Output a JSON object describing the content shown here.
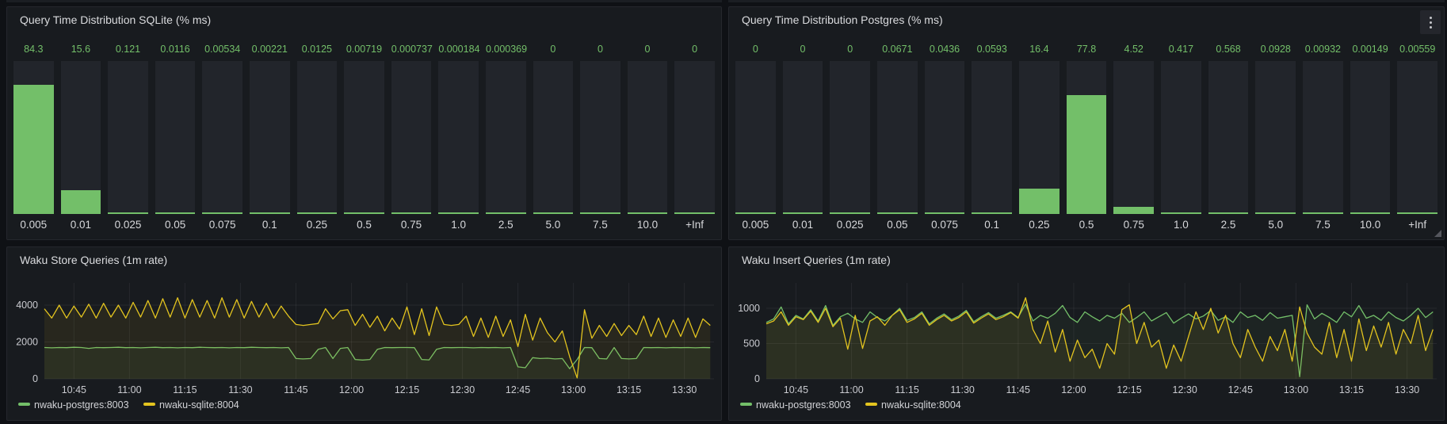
{
  "colors": {
    "green": "#73bf69",
    "yellow": "#e3c41f",
    "green_fill": "rgba(115,191,105,0.06)",
    "yellow_fill": "rgba(227,196,31,0.08)",
    "value_text": "#73bf69",
    "axis_text": "#cacbd0",
    "grid": "rgba(204,204,220,0.08)",
    "bar_track": "#22252b",
    "panel_bg": "#181b1f"
  },
  "chart_data": [
    {
      "id": "hist-sqlite",
      "type": "bar",
      "title": "Query Time Distribution SQLite (% ms)",
      "categories": [
        "0.005",
        "0.01",
        "0.025",
        "0.05",
        "0.075",
        "0.1",
        "0.25",
        "0.5",
        "0.75",
        "1.0",
        "2.5",
        "5.0",
        "7.5",
        "10.0",
        "+Inf"
      ],
      "values": [
        84.3,
        15.6,
        0.121,
        0.0116,
        0.00534,
        0.00221,
        0.0125,
        0.00719,
        0.000737,
        0.000184,
        0.000369,
        0,
        0,
        0,
        0
      ],
      "value_labels": [
        "84.3",
        "15.6",
        "0.121",
        "0.0116",
        "0.00534",
        "0.00221",
        "0.0125",
        "0.00719",
        "0.000737",
        "0.000184",
        "0.000369",
        "0",
        "0",
        "0",
        "0"
      ],
      "ylim": [
        0,
        100
      ],
      "unit": "%"
    },
    {
      "id": "hist-postgres",
      "type": "bar",
      "title": "Query Time Distribution Postgres (% ms)",
      "categories": [
        "0.005",
        "0.01",
        "0.025",
        "0.05",
        "0.075",
        "0.1",
        "0.25",
        "0.5",
        "0.75",
        "1.0",
        "2.5",
        "5.0",
        "7.5",
        "10.0",
        "+Inf"
      ],
      "values": [
        0,
        0,
        0,
        0.0671,
        0.0436,
        0.0593,
        16.4,
        77.8,
        4.52,
        0.417,
        0.568,
        0.0928,
        0.00932,
        0.00149,
        0.00559
      ],
      "value_labels": [
        "0",
        "0",
        "0",
        "0.0671",
        "0.0436",
        "0.0593",
        "16.4",
        "77.8",
        "4.52",
        "0.417",
        "0.568",
        "0.0928",
        "0.00932",
        "0.00149",
        "0.00559"
      ],
      "ylim": [
        0,
        100
      ],
      "unit": "%"
    },
    {
      "id": "ts-store",
      "type": "line",
      "title": "Waku Store Queries (1m rate)",
      "x_start": "10:37",
      "duration_min": 181,
      "x_ticks": [
        {
          "label": "10:45",
          "min": 8
        },
        {
          "label": "11:00",
          "min": 23
        },
        {
          "label": "11:15",
          "min": 38
        },
        {
          "label": "11:30",
          "min": 53
        },
        {
          "label": "11:45",
          "min": 68
        },
        {
          "label": "12:00",
          "min": 83
        },
        {
          "label": "12:15",
          "min": 98
        },
        {
          "label": "12:30",
          "min": 113
        },
        {
          "label": "12:45",
          "min": 128
        },
        {
          "label": "13:00",
          "min": 143
        },
        {
          "label": "13:15",
          "min": 158
        },
        {
          "label": "13:30",
          "min": 173
        }
      ],
      "y_ticks": [
        0,
        2000,
        4000
      ],
      "y_max": 5204,
      "legend_position": "bottom-left",
      "grid": true,
      "series": [
        {
          "name": "nwaku-postgres:8003",
          "color": "#73bf69",
          "fill": "rgba(115,191,105,0.06)",
          "step_min": 2,
          "values": [
            1700,
            1680,
            1700,
            1690,
            1710,
            1700,
            1650,
            1700,
            1690,
            1700,
            1710,
            1690,
            1700,
            1680,
            1700,
            1710,
            1690,
            1700,
            1680,
            1700,
            1690,
            1710,
            1700,
            1690,
            1700,
            1680,
            1700,
            1690,
            1710,
            1700,
            1690,
            1700,
            1680,
            1700,
            1100,
            1080,
            1100,
            1600,
            1700,
            1100,
            1650,
            1700,
            1050,
            1020,
            1050,
            1600,
            1700,
            1690,
            1700,
            1700,
            1690,
            1050,
            1030,
            1600,
            1700,
            1690,
            1700,
            1700,
            1680,
            1700,
            1690,
            1700,
            1680,
            1700,
            650,
            600,
            1150,
            1100,
            1120,
            1080,
            1100,
            550,
            1050,
            1700,
            1690,
            1100,
            1080,
            1700,
            1100,
            1080,
            1100,
            1700,
            1690,
            1700,
            1680,
            1700,
            1690,
            1700,
            1680,
            1700,
            1690
          ]
        },
        {
          "name": "nwaku-sqlite:8004",
          "color": "#e3c41f",
          "fill": "rgba(227,196,31,0.08)",
          "step_min": 2,
          "values": [
            3800,
            3300,
            4000,
            3300,
            3950,
            3350,
            4050,
            3300,
            4100,
            3350,
            4000,
            3300,
            4150,
            3350,
            4250,
            3300,
            4350,
            3350,
            4400,
            3300,
            4300,
            3350,
            4250,
            3300,
            4400,
            3350,
            4300,
            3300,
            4200,
            3350,
            4100,
            3300,
            3950,
            3400,
            2950,
            2900,
            2950,
            3000,
            3800,
            3250,
            3700,
            3750,
            2900,
            3500,
            2800,
            3400,
            2600,
            3300,
            2700,
            3900,
            2400,
            3800,
            2350,
            3900,
            2950,
            2900,
            2950,
            3400,
            2300,
            3300,
            2250,
            3400,
            2300,
            3200,
            1750,
            3500,
            2100,
            3300,
            2500,
            2000,
            2600,
            1200,
            50,
            3750,
            2200,
            2900,
            2300,
            3000,
            2350,
            2900,
            2400,
            3400,
            2300,
            3300,
            2250,
            3200,
            2300,
            3300,
            2250,
            3250,
            2900
          ]
        }
      ]
    },
    {
      "id": "ts-insert",
      "type": "line",
      "title": "Waku Insert Queries (1m rate)",
      "x_start": "10:37",
      "duration_min": 181,
      "x_ticks": [
        {
          "label": "10:45",
          "min": 8
        },
        {
          "label": "11:00",
          "min": 23
        },
        {
          "label": "11:15",
          "min": 38
        },
        {
          "label": "11:30",
          "min": 53
        },
        {
          "label": "11:45",
          "min": 68
        },
        {
          "label": "12:00",
          "min": 83
        },
        {
          "label": "12:15",
          "min": 98
        },
        {
          "label": "12:30",
          "min": 113
        },
        {
          "label": "12:45",
          "min": 128
        },
        {
          "label": "13:00",
          "min": 143
        },
        {
          "label": "13:15",
          "min": 158
        },
        {
          "label": "13:30",
          "min": 173
        }
      ],
      "y_ticks": [
        0,
        500,
        1000
      ],
      "y_max": 1360,
      "legend_position": "bottom-left",
      "grid": true,
      "series": [
        {
          "name": "nwaku-postgres:8003",
          "color": "#73bf69",
          "fill": "rgba(115,191,105,0.06)",
          "step_min": 2,
          "values": [
            800,
            850,
            1020,
            780,
            900,
            850,
            980,
            820,
            1040,
            760,
            880,
            930,
            850,
            800,
            950,
            870,
            820,
            900,
            1000,
            830,
            870,
            950,
            780,
            860,
            920,
            840,
            890,
            970,
            810,
            880,
            940,
            860,
            900,
            950,
            870,
            1060,
            820,
            900,
            860,
            930,
            1040,
            870,
            800,
            950,
            880,
            820,
            900,
            860,
            930,
            800,
            870,
            950,
            820,
            880,
            940,
            790,
            860,
            920,
            850,
            890,
            970,
            830,
            880,
            800,
            950,
            870,
            900,
            830,
            940,
            860,
            880,
            900,
            30,
            1050,
            850,
            930,
            870,
            800,
            950,
            880,
            1040,
            860,
            900,
            830,
            950,
            870,
            820,
            900,
            1000,
            870,
            950
          ]
        },
        {
          "name": "nwaku-sqlite:8004",
          "color": "#e3c41f",
          "fill": "rgba(227,196,31,0.08)",
          "step_min": 2,
          "values": [
            780,
            820,
            950,
            760,
            880,
            840,
            960,
            800,
            1000,
            740,
            860,
            420,
            900,
            430,
            820,
            880,
            760,
            900,
            980,
            800,
            850,
            930,
            760,
            840,
            900,
            820,
            870,
            950,
            790,
            860,
            920,
            840,
            880,
            940,
            860,
            1150,
            700,
            500,
            820,
            380,
            700,
            250,
            550,
            300,
            420,
            150,
            500,
            350,
            980,
            1050,
            500,
            800,
            450,
            550,
            150,
            480,
            250,
            600,
            950,
            700,
            1000,
            650,
            900,
            500,
            300,
            700,
            450,
            250,
            600,
            400,
            700,
            250,
            1020,
            650,
            450,
            350,
            800,
            300,
            700,
            250,
            850,
            400,
            750,
            450,
            800,
            350,
            700,
            500,
            900,
            400,
            700
          ]
        }
      ]
    }
  ],
  "chrome": {
    "panel_menu_icon": "kebab-vertical"
  }
}
